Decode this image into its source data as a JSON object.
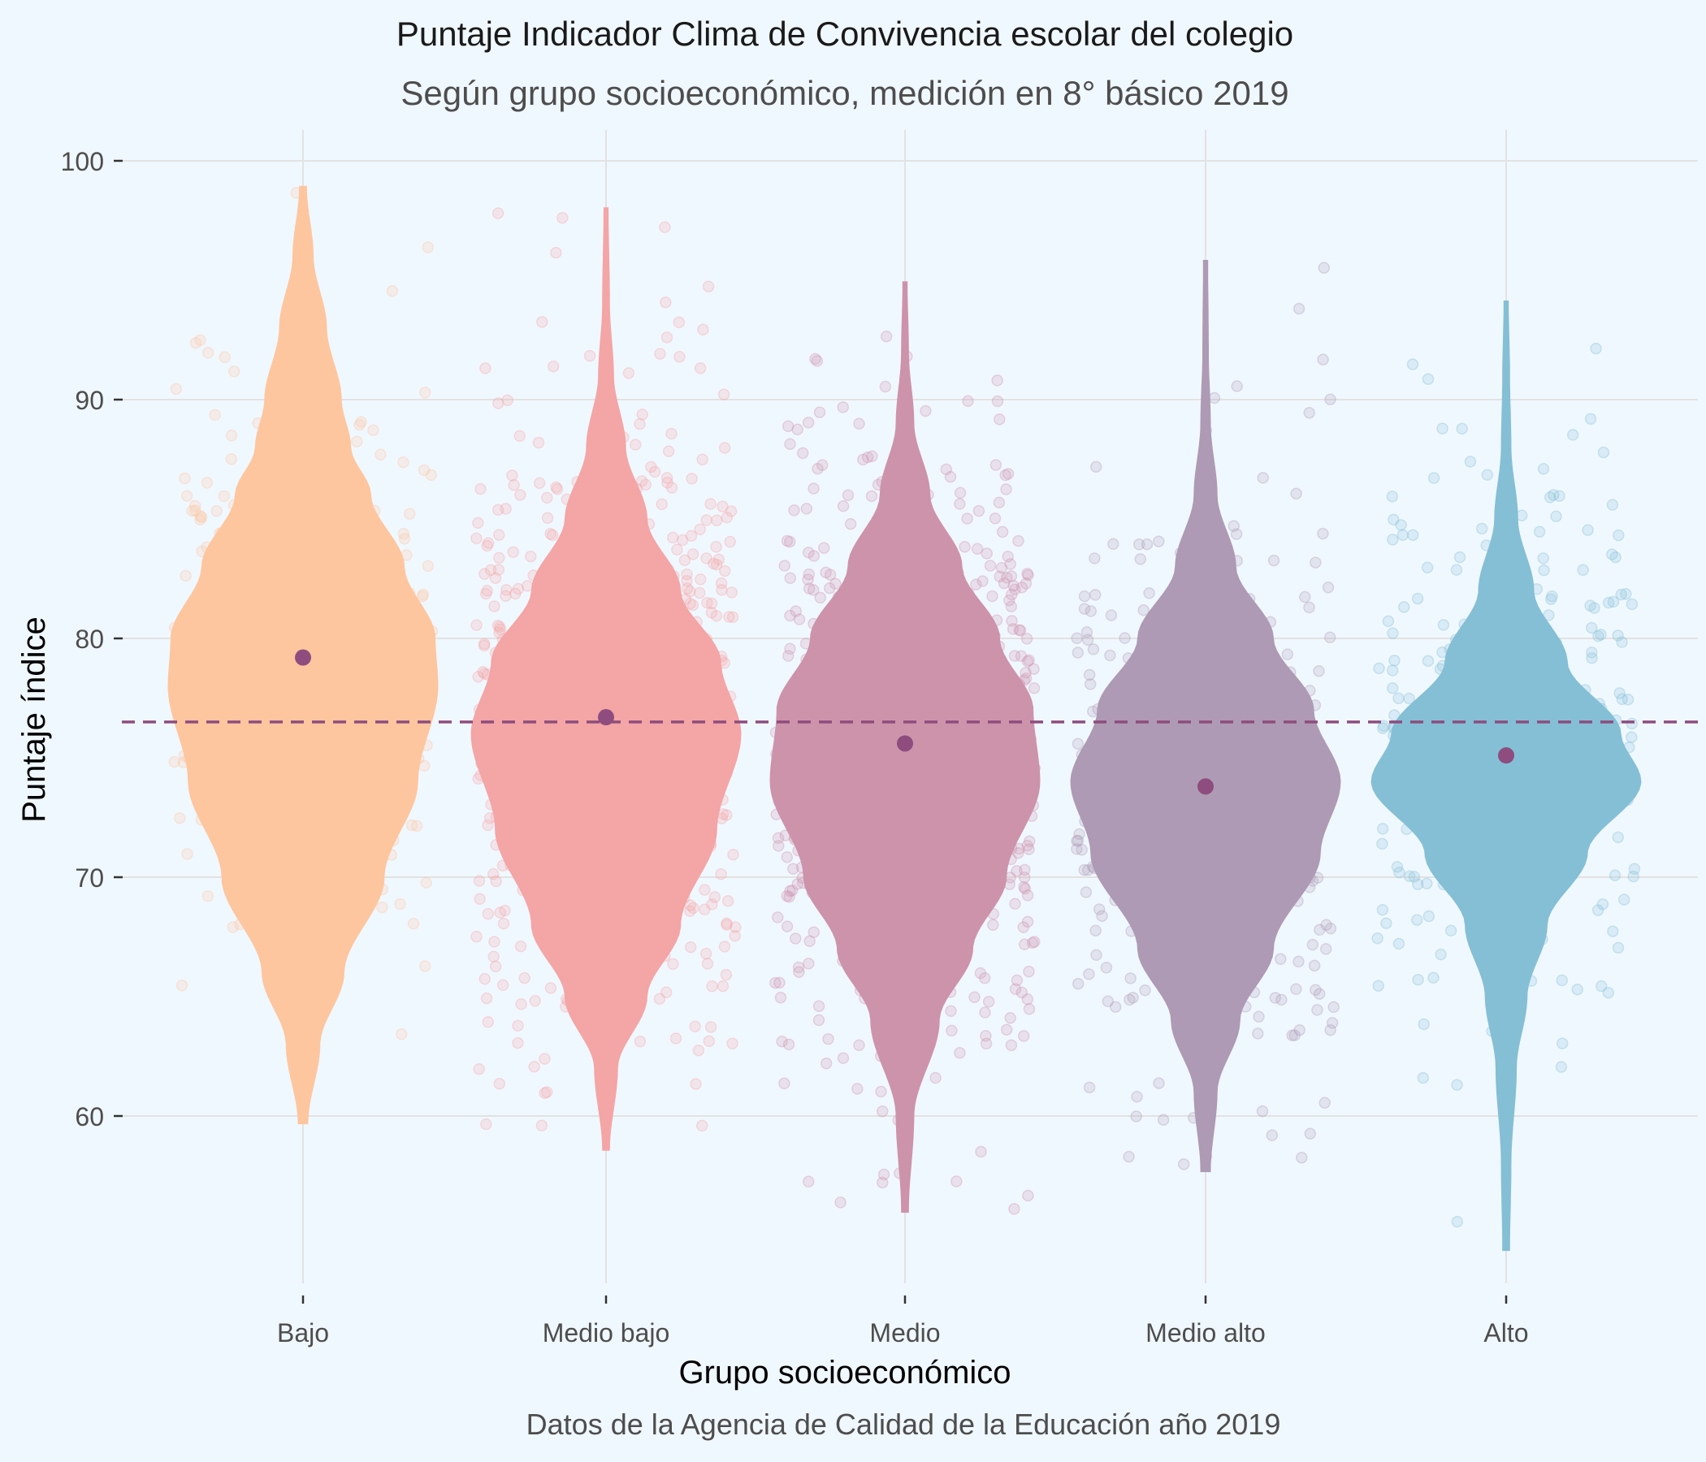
{
  "chart_data": {
    "type": "violin",
    "title": "Puntaje Indicador Clima de Convivencia escolar del colegio",
    "subtitle": "Según grupo socioeconómico, medición en 8° básico 2019",
    "xlabel": "Grupo socioeconómico",
    "ylabel": "Puntaje índice",
    "caption": "Datos de la Agencia de Calidad de la Educación año 2019",
    "categories": [
      "Bajo",
      "Medio bajo",
      "Medio",
      "Medio alto",
      "Alto"
    ],
    "colors": [
      "#fdc69f",
      "#f4a5a5",
      "#cd93ab",
      "#ae9ab4",
      "#84bfd5"
    ],
    "means": [
      79.2,
      76.7,
      75.6,
      73.8,
      75.1
    ],
    "mean_color": "#8e4d7e",
    "reference_line": 76.5,
    "reference_line_color": "#8e4d7e",
    "ylim": [
      53,
      102
    ],
    "yticks": [
      60,
      70,
      80,
      90,
      100
    ],
    "yticks_labels": [
      "60",
      "70",
      "80",
      "90",
      "100"
    ],
    "grid": true,
    "distributions": [
      {
        "min": 59.7,
        "max": 98.9,
        "profile": [
          [
            59.7,
            0.03
          ],
          [
            63,
            0.12
          ],
          [
            66,
            0.3
          ],
          [
            70,
            0.6
          ],
          [
            74,
            0.85
          ],
          [
            78,
            1.0
          ],
          [
            80,
            0.98
          ],
          [
            83,
            0.75
          ],
          [
            86,
            0.5
          ],
          [
            88,
            0.35
          ],
          [
            90,
            0.28
          ],
          [
            93,
            0.17
          ],
          [
            96,
            0.07
          ],
          [
            98.9,
            0.02
          ]
        ]
      },
      {
        "min": 58.6,
        "max": 98.0,
        "profile": [
          [
            58.6,
            0.02
          ],
          [
            62,
            0.08
          ],
          [
            65,
            0.3
          ],
          [
            68,
            0.55
          ],
          [
            72,
            0.82
          ],
          [
            76,
            1.0
          ],
          [
            79,
            0.85
          ],
          [
            82,
            0.55
          ],
          [
            85,
            0.3
          ],
          [
            88,
            0.14
          ],
          [
            91,
            0.05
          ],
          [
            94,
            0.02
          ],
          [
            98.0,
            0.01
          ]
        ]
      },
      {
        "min": 56.0,
        "max": 94.9,
        "profile": [
          [
            56,
            0.02
          ],
          [
            60,
            0.06
          ],
          [
            64,
            0.25
          ],
          [
            67,
            0.5
          ],
          [
            70,
            0.75
          ],
          [
            74,
            1.0
          ],
          [
            77,
            0.95
          ],
          [
            80,
            0.7
          ],
          [
            83,
            0.42
          ],
          [
            86,
            0.18
          ],
          [
            89,
            0.06
          ],
          [
            92,
            0.02
          ],
          [
            94.9,
            0.01
          ]
        ]
      },
      {
        "min": 57.7,
        "max": 95.8,
        "profile": [
          [
            57.7,
            0.03
          ],
          [
            61,
            0.08
          ],
          [
            64,
            0.25
          ],
          [
            67,
            0.5
          ],
          [
            71,
            0.85
          ],
          [
            74,
            1.0
          ],
          [
            77,
            0.8
          ],
          [
            80,
            0.5
          ],
          [
            83,
            0.22
          ],
          [
            86,
            0.08
          ],
          [
            89,
            0.03
          ],
          [
            92,
            0.015
          ],
          [
            95.8,
            0.01
          ]
        ]
      },
      {
        "min": 54.4,
        "max": 94.1,
        "profile": [
          [
            54.4,
            0.02
          ],
          [
            58,
            0.03
          ],
          [
            62,
            0.07
          ],
          [
            65,
            0.15
          ],
          [
            68,
            0.3
          ],
          [
            71,
            0.6
          ],
          [
            74,
            1.0
          ],
          [
            76,
            0.85
          ],
          [
            79,
            0.45
          ],
          [
            82,
            0.2
          ],
          [
            85,
            0.08
          ],
          [
            88,
            0.03
          ],
          [
            91,
            0.02
          ],
          [
            94.1,
            0.01
          ]
        ]
      }
    ]
  }
}
